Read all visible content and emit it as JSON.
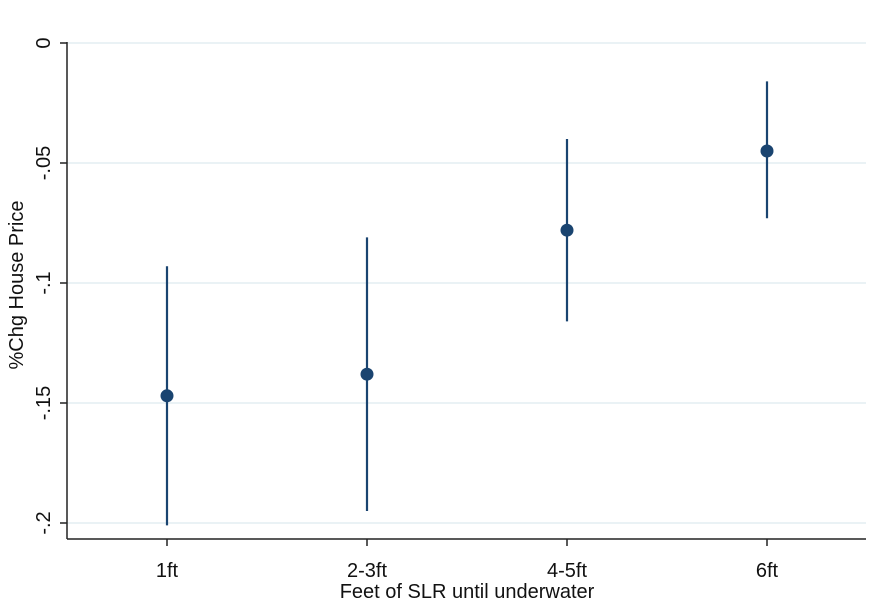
{
  "chart_data": {
    "type": "scatter",
    "subtype": "coefficient plot with confidence intervals",
    "title": "",
    "xlabel": "Feet of SLR until underwater",
    "ylabel": "%Chg House Price",
    "categories": [
      "1ft",
      "2-3ft",
      "4-5ft",
      "6ft"
    ],
    "series": [
      {
        "points": [
          {
            "category": "1ft",
            "estimate": -0.147,
            "ci_low": -0.201,
            "ci_high": -0.093
          },
          {
            "category": "2-3ft",
            "estimate": -0.138,
            "ci_low": -0.195,
            "ci_high": -0.081
          },
          {
            "category": "4-5ft",
            "estimate": -0.078,
            "ci_low": -0.116,
            "ci_high": -0.04
          },
          {
            "category": "6ft",
            "estimate": -0.045,
            "ci_low": -0.073,
            "ci_high": -0.016
          }
        ]
      }
    ],
    "ylim": [
      -0.2,
      0
    ],
    "yticks": [
      {
        "value": 0,
        "label": "0"
      },
      {
        "value": -0.05,
        "label": "-.05"
      },
      {
        "value": -0.1,
        "label": "-.1"
      },
      {
        "value": -0.15,
        "label": "-.15"
      },
      {
        "value": -0.2,
        "label": "-.2"
      }
    ],
    "grid": true,
    "legend": "none",
    "colors": {
      "marker": "#1a4470",
      "grid": "#e3eef2",
      "axis": "#222222",
      "background": "#ffffff"
    }
  }
}
